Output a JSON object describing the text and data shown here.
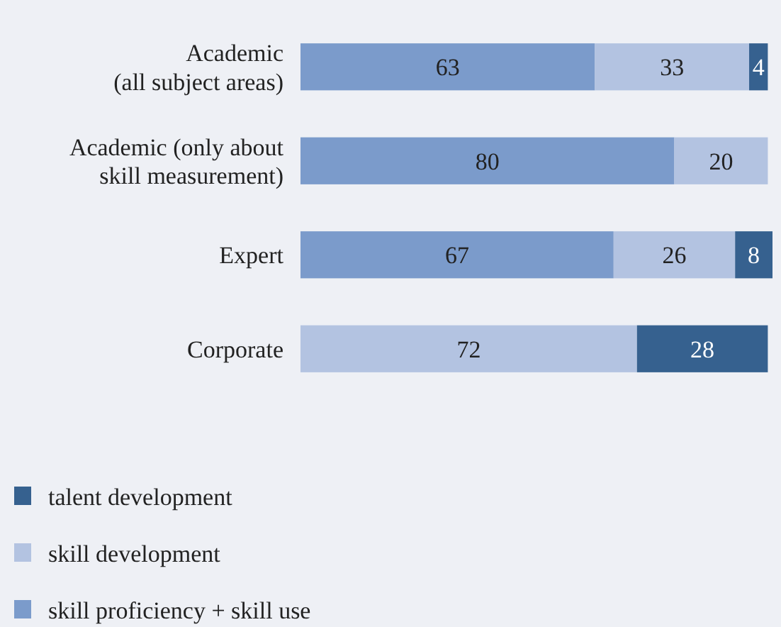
{
  "chart_data": {
    "type": "bar",
    "orientation": "horizontal",
    "stacked": true,
    "data_labels": true,
    "legend": "bottom left",
    "categories": [
      "Academic\n(all subject areas)",
      "Academic (only about\nskill measurement)",
      "Expert",
      "Corporate"
    ],
    "series": [
      {
        "name": "skill proficiency + skill use",
        "color": "#7b9bcb",
        "values": [
          63,
          80,
          67,
          null
        ]
      },
      {
        "name": "skill development",
        "color": "#b3c3e1",
        "values": [
          33,
          20,
          26,
          72
        ]
      },
      {
        "name": "talent development",
        "color": "#36618f",
        "values": [
          4,
          null,
          8,
          28
        ]
      }
    ]
  }
}
